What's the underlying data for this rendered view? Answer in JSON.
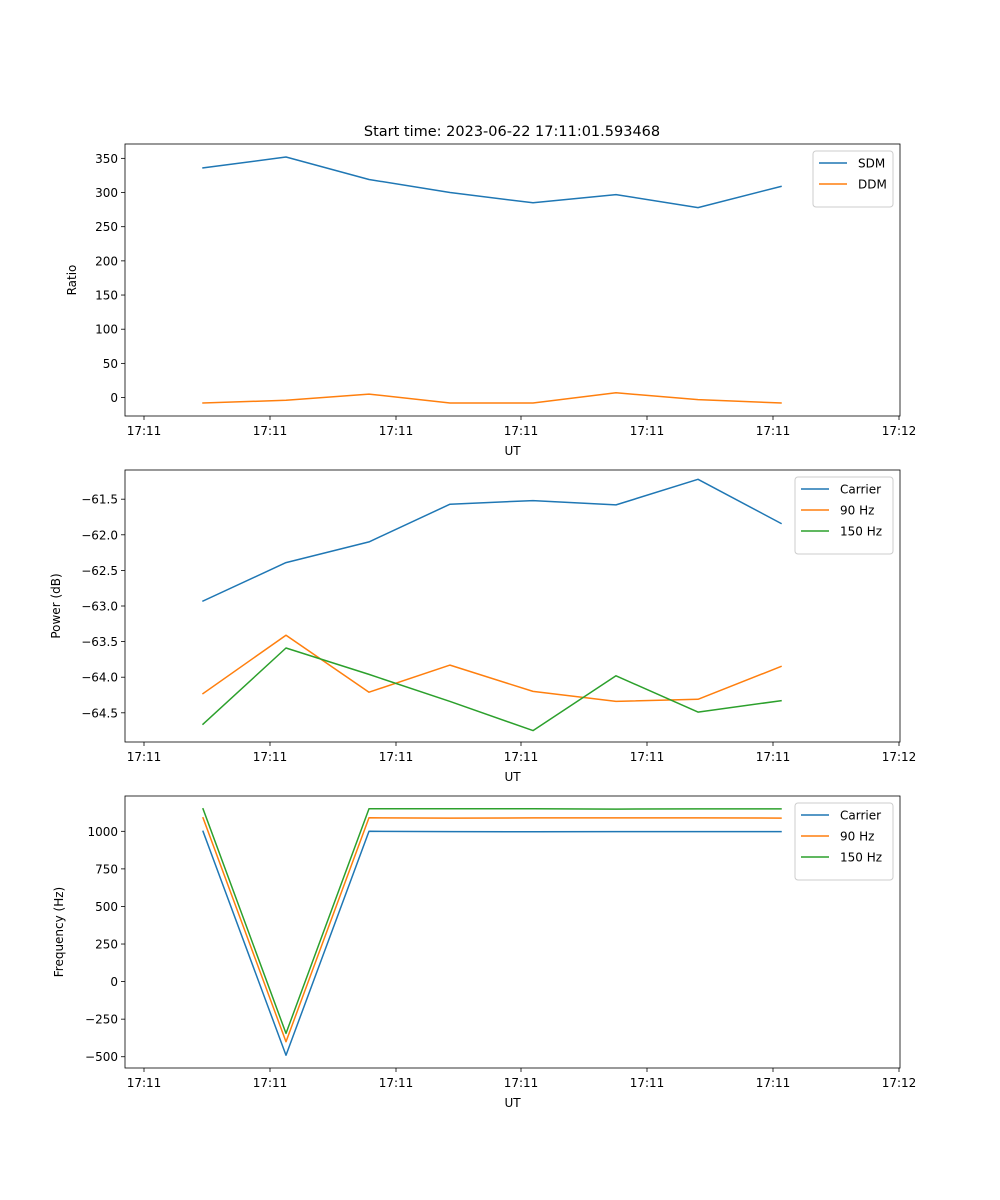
{
  "figure": {
    "title": "Start time: 2023-06-22 17:11:01.593468"
  },
  "chart_data": [
    {
      "type": "line",
      "xlabel": "UT",
      "ylabel": "Ratio",
      "x_ticks": [
        "17:11",
        "17:11",
        "17:11",
        "17:11",
        "17:11",
        "17:11",
        "17:12"
      ],
      "y_ticks": [
        0,
        50,
        100,
        150,
        200,
        250,
        300,
        350
      ],
      "ylim": [
        -27,
        371
      ],
      "legend_position": "upper right",
      "series": [
        {
          "name": "SDM",
          "color": "#1f77b4",
          "values": [
            336,
            352,
            319,
            300,
            285,
            297,
            278,
            309
          ]
        },
        {
          "name": "DDM",
          "color": "#ff7f0e",
          "values": [
            -8,
            -4,
            5,
            -8,
            -8,
            7,
            -3,
            -8
          ]
        }
      ]
    },
    {
      "type": "line",
      "xlabel": "UT",
      "ylabel": "Power (dB)",
      "x_ticks": [
        "17:11",
        "17:11",
        "17:11",
        "17:11",
        "17:11",
        "17:11",
        "17:12"
      ],
      "y_ticks": [
        -64.5,
        -64.0,
        -63.5,
        -63.0,
        -62.5,
        -62.0,
        -61.5
      ],
      "y_tick_labels": [
        "−64.5",
        "−64.0",
        "−63.5",
        "−63.0",
        "−62.5",
        "−62.0",
        "−61.5"
      ],
      "ylim": [
        -64.91,
        -61.09
      ],
      "legend_position": "upper right",
      "series": [
        {
          "name": "Carrier",
          "color": "#1f77b4",
          "values": [
            -62.93,
            -62.39,
            -62.1,
            -61.57,
            -61.52,
            -61.58,
            -61.22,
            -61.84
          ]
        },
        {
          "name": "90 Hz",
          "color": "#ff7f0e",
          "values": [
            -64.23,
            -63.41,
            -64.21,
            -63.83,
            -64.2,
            -64.34,
            -64.31,
            -63.85
          ]
        },
        {
          "name": "150 Hz",
          "color": "#2ca02c",
          "values": [
            -64.66,
            -63.59,
            -63.96,
            -64.34,
            -64.75,
            -63.98,
            -64.49,
            -64.33
          ]
        }
      ]
    },
    {
      "type": "line",
      "xlabel": "UT",
      "ylabel": "Frequency (Hz)",
      "x_ticks": [
        "17:11",
        "17:11",
        "17:11",
        "17:11",
        "17:11",
        "17:11",
        "17:12"
      ],
      "y_ticks": [
        -500,
        -250,
        0,
        250,
        500,
        750,
        1000
      ],
      "y_tick_labels": [
        "−500",
        "−250",
        "0",
        "250",
        "500",
        "750",
        "1000"
      ],
      "ylim": [
        -575,
        1235
      ],
      "legend_position": "upper right",
      "series": [
        {
          "name": "Carrier",
          "color": "#1f77b4",
          "values": [
            1000,
            -490,
            1000,
            998,
            997,
            998,
            998,
            998
          ]
        },
        {
          "name": "90 Hz",
          "color": "#ff7f0e",
          "values": [
            1090,
            -400,
            1090,
            1088,
            1089,
            1089,
            1089,
            1088
          ]
        },
        {
          "name": "150 Hz",
          "color": "#2ca02c",
          "values": [
            1150,
            -345,
            1150,
            1150,
            1150,
            1148,
            1149,
            1149
          ]
        }
      ]
    }
  ]
}
